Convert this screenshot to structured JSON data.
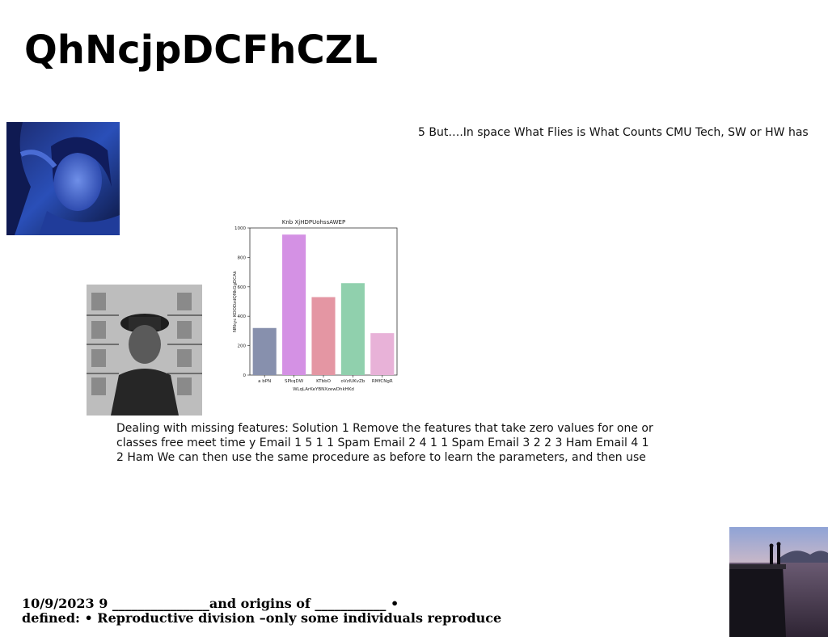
{
  "slide": {
    "title": "QhNcjpDCFhCZL",
    "right_text": "5 But….In space What Flies is What Counts CMU Tech, SW or HW has",
    "main_text": "Dealing with missing features: Solution 1 Remove the features that take zero values for one or classes free meet time y Email 1 5 1 1 Spam Email 2 4 1 1 Spam Email 3 2 2 3 Ham Email 4 1 2 Ham We can then use the same procedure as before to learn the parameters, and then use",
    "footer_line1": "10/9/2023 9 _______________and origins of ___________ •",
    "footer_line2": "defined: • Reproductive division –only some individuals reproduce"
  },
  "images": {
    "woman_portrait": "blue-toned portrait photo",
    "officer_portrait": "black and white photo of officer",
    "pier_scene": "pier over water at dusk"
  },
  "chart_data": {
    "type": "bar",
    "title": "Knb XjHDPUohssAWEP",
    "xlabel": "WLqLArKeYBNXzewDhkHKd",
    "ylabel": "NRkyc KOODzdQNkGgDCAk",
    "categories": [
      "a bPN",
      "SPkqDW",
      "KTbbO",
      "oVzIUKvZb",
      "RMfCNgR"
    ],
    "values": [
      320,
      955,
      530,
      625,
      285
    ],
    "colors": [
      "#8790ad",
      "#d491e4",
      "#e496a3",
      "#90d0ad",
      "#e8b2d8"
    ],
    "ylim": [
      0,
      1000
    ],
    "yticks": [
      0,
      200,
      400,
      600,
      800,
      1000
    ],
    "grid": false
  }
}
